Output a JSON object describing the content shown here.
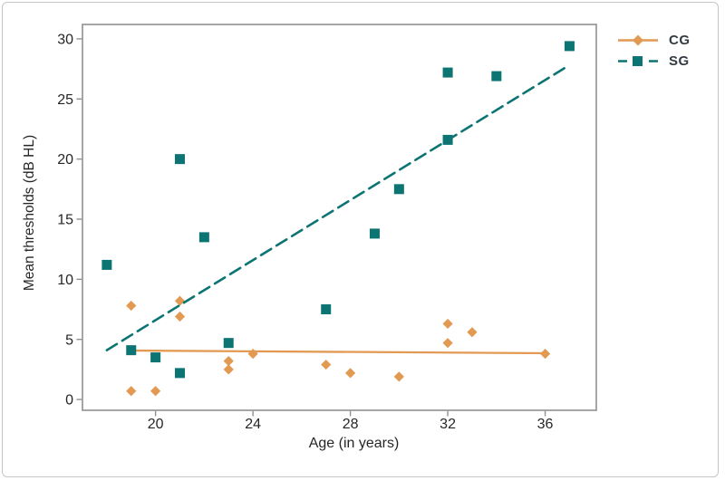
{
  "figure": {
    "background": "#ffffff",
    "border_color": "#c6c6c6"
  },
  "chart_data": {
    "type": "scatter",
    "title": "",
    "xlabel": "Age (in years)",
    "ylabel": "Mean thresholds (dB HL)",
    "xlim": [
      17,
      38.1
    ],
    "ylim": [
      -0.9,
      31.2
    ],
    "x_ticks": [
      20,
      24,
      28,
      32,
      36
    ],
    "y_ticks": [
      0,
      5,
      10,
      15,
      20,
      25,
      30
    ],
    "grid": false,
    "legend_position": "top-right-outside",
    "axis_color": "#8f8f8f",
    "tick_label_color": "#262626",
    "series": [
      {
        "name": "CG",
        "marker": "diamond",
        "color": "#e29952",
        "line_style": "solid",
        "trend_line": {
          "x1": 19.1,
          "y1": 4.07,
          "x2": 36.1,
          "y2": 3.85
        },
        "points": [
          [
            19,
            7.8
          ],
          [
            19,
            0.7
          ],
          [
            20,
            0.7
          ],
          [
            21,
            8.2
          ],
          [
            21,
            6.9
          ],
          [
            23,
            3.2
          ],
          [
            23,
            2.5
          ],
          [
            24,
            3.8
          ],
          [
            27,
            2.9
          ],
          [
            28,
            2.2
          ],
          [
            30,
            1.9
          ],
          [
            32,
            6.3
          ],
          [
            32,
            4.7
          ],
          [
            33,
            5.6
          ],
          [
            36,
            3.8
          ]
        ]
      },
      {
        "name": "SG",
        "marker": "square",
        "color": "#0c7472",
        "line_style": "dashed",
        "trend_line": {
          "x1": 18.0,
          "y1": 4.1,
          "x2": 36.9,
          "y2": 27.7
        },
        "points": [
          [
            18,
            11.2
          ],
          [
            19,
            4.1
          ],
          [
            20,
            3.5
          ],
          [
            21,
            20.0
          ],
          [
            21,
            2.2
          ],
          [
            22,
            13.5
          ],
          [
            23,
            4.7
          ],
          [
            27,
            7.5
          ],
          [
            29,
            13.8
          ],
          [
            30,
            17.5
          ],
          [
            32,
            21.6
          ],
          [
            32,
            27.2
          ],
          [
            34,
            26.9
          ],
          [
            37,
            29.4
          ]
        ]
      }
    ]
  }
}
